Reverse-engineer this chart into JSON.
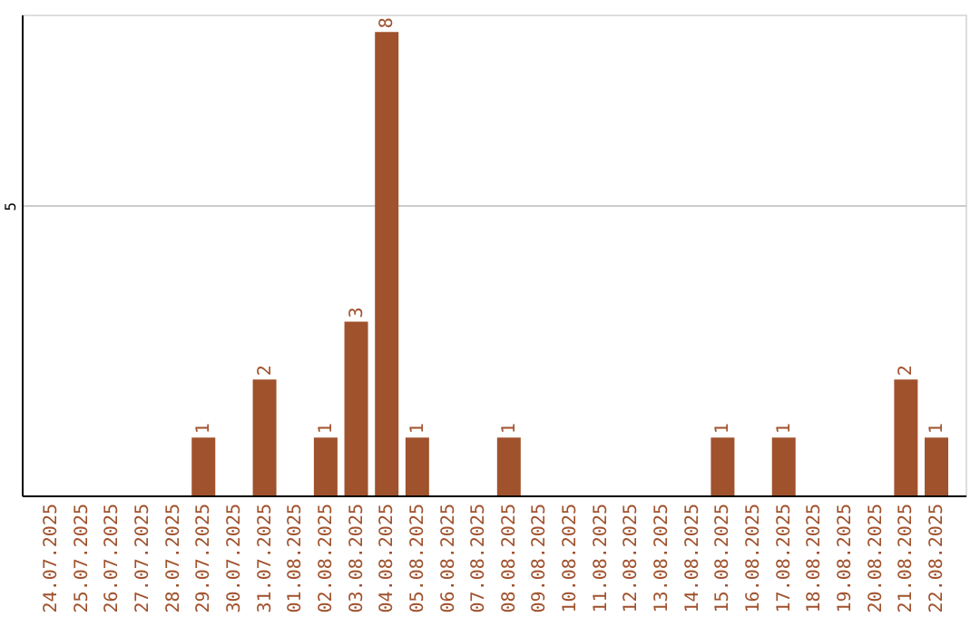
{
  "chart_data": {
    "type": "bar",
    "categories": [
      "24.07.2025",
      "25.07.2025",
      "26.07.2025",
      "27.07.2025",
      "28.07.2025",
      "29.07.2025",
      "30.07.2025",
      "31.07.2025",
      "01.08.2025",
      "02.08.2025",
      "03.08.2025",
      "04.08.2025",
      "05.08.2025",
      "06.08.2025",
      "07.08.2025",
      "08.08.2025",
      "09.08.2025",
      "10.08.2025",
      "11.08.2025",
      "12.08.2025",
      "13.08.2025",
      "14.08.2025",
      "15.08.2025",
      "16.08.2025",
      "17.08.2025",
      "18.08.2025",
      "19.08.2025",
      "20.08.2025",
      "21.08.2025",
      "22.08.2025"
    ],
    "values": [
      0,
      0,
      0,
      0,
      0,
      1,
      0,
      2,
      0,
      1,
      3,
      8,
      1,
      0,
      0,
      1,
      0,
      0,
      0,
      0,
      0,
      0,
      1,
      0,
      1,
      0,
      0,
      0,
      2,
      1
    ],
    "value_labels": [
      null,
      null,
      null,
      null,
      null,
      "1",
      null,
      "2",
      null,
      "1",
      "3",
      "8",
      "1",
      null,
      null,
      "1",
      null,
      null,
      null,
      null,
      null,
      null,
      "1",
      null,
      "1",
      null,
      null,
      null,
      "2",
      "1"
    ],
    "color": "#a0522d",
    "ylim": [
      0,
      8.3
    ],
    "yticks": [
      5
    ],
    "grid": "y"
  }
}
